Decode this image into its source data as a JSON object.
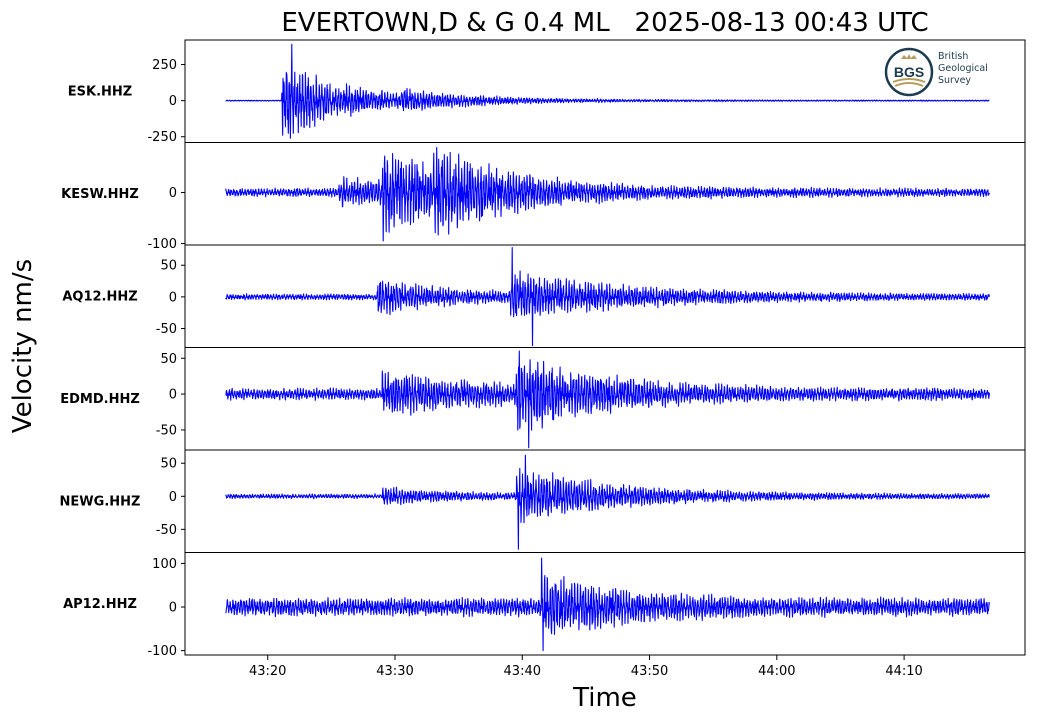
{
  "chart_data": {
    "type": "line",
    "title": "EVERTOWN,D & G 0.4 ML   2025-08-13 00:43 UTC",
    "xlabel": "Time",
    "ylabel": "Velocity nm/s",
    "x_ticks": [
      "43:20",
      "43:30",
      "43:40",
      "43:50",
      "44:00",
      "44:10"
    ],
    "x_range_seconds_after_00_43": [
      13.5,
      79.5
    ],
    "trace_range_seconds_after_00_43": [
      16.7,
      76.7
    ],
    "line_color": "#0000ff",
    "panels": [
      {
        "station": "ESK.HHZ",
        "ylim": [
          -290,
          420
        ],
        "yticks": [
          250,
          0,
          -250
        ],
        "ytick_labels": [
          "250",
          "0",
          "-250"
        ],
        "noise": 3,
        "bursts": [
          {
            "t": 21.1,
            "amp": 280,
            "decay": 4
          },
          {
            "t": 26.0,
            "amp": 25,
            "decay": 12
          },
          {
            "t": 30.5,
            "amp": 35,
            "decay": 6
          }
        ],
        "peak_max": 390,
        "peak_min": -260
      },
      {
        "station": "KESW.HHZ",
        "ylim": [
          -103,
          98
        ],
        "yticks": [
          0,
          -100
        ],
        "ytick_labels": [
          "0",
          "-100"
        ],
        "noise": 7,
        "bursts": [
          {
            "t": 25.6,
            "amp": 22,
            "decay": 8
          },
          {
            "t": 29.0,
            "amp": 55,
            "decay": 6
          },
          {
            "t": 33.0,
            "amp": 38,
            "decay": 7
          }
        ],
        "peak_max": 88,
        "peak_min": -95
      },
      {
        "station": "AQ12.HHZ",
        "ylim": [
          -80,
          82
        ],
        "yticks": [
          50,
          0,
          -50
        ],
        "ytick_labels": [
          "50",
          "0",
          "-50"
        ],
        "noise": 4,
        "bursts": [
          {
            "t": 28.6,
            "amp": 22,
            "decay": 6
          },
          {
            "t": 39.0,
            "amp": 32,
            "decay": 9
          }
        ],
        "peak_max": 78,
        "peak_min": -77
      },
      {
        "station": "EDMD.HHZ",
        "ylim": [
          -78,
          65
        ],
        "yticks": [
          50,
          0,
          -50
        ],
        "ytick_labels": [
          "50",
          "0",
          "-50"
        ],
        "noise": 7,
        "bursts": [
          {
            "t": 29.0,
            "amp": 22,
            "decay": 8
          },
          {
            "t": 39.5,
            "amp": 38,
            "decay": 7
          }
        ],
        "peak_max": 60,
        "peak_min": -75
      },
      {
        "station": "NEWG.HHZ",
        "ylim": [
          -85,
          70
        ],
        "yticks": [
          50,
          0,
          -50
        ],
        "ytick_labels": [
          "50",
          "0",
          "-50"
        ],
        "noise": 3,
        "bursts": [
          {
            "t": 29.0,
            "amp": 10,
            "decay": 6
          },
          {
            "t": 39.5,
            "amp": 36,
            "decay": 8
          }
        ],
        "peak_max": 62,
        "peak_min": -80
      },
      {
        "station": "AP12.HHZ",
        "ylim": [
          -110,
          125
        ],
        "yticks": [
          100,
          0,
          -100
        ],
        "ytick_labels": [
          "100",
          "0",
          "-100"
        ],
        "noise": 18,
        "bursts": [
          {
            "t": 41.5,
            "amp": 55,
            "decay": 6
          }
        ],
        "peak_max": 112,
        "peak_min": -100
      }
    ]
  },
  "logo": {
    "initials": "BGS",
    "line1": "British",
    "line2": "Geological",
    "line3": "Survey",
    "color_dark": "#1d3b4f",
    "color_gold": "#b79c5b"
  }
}
